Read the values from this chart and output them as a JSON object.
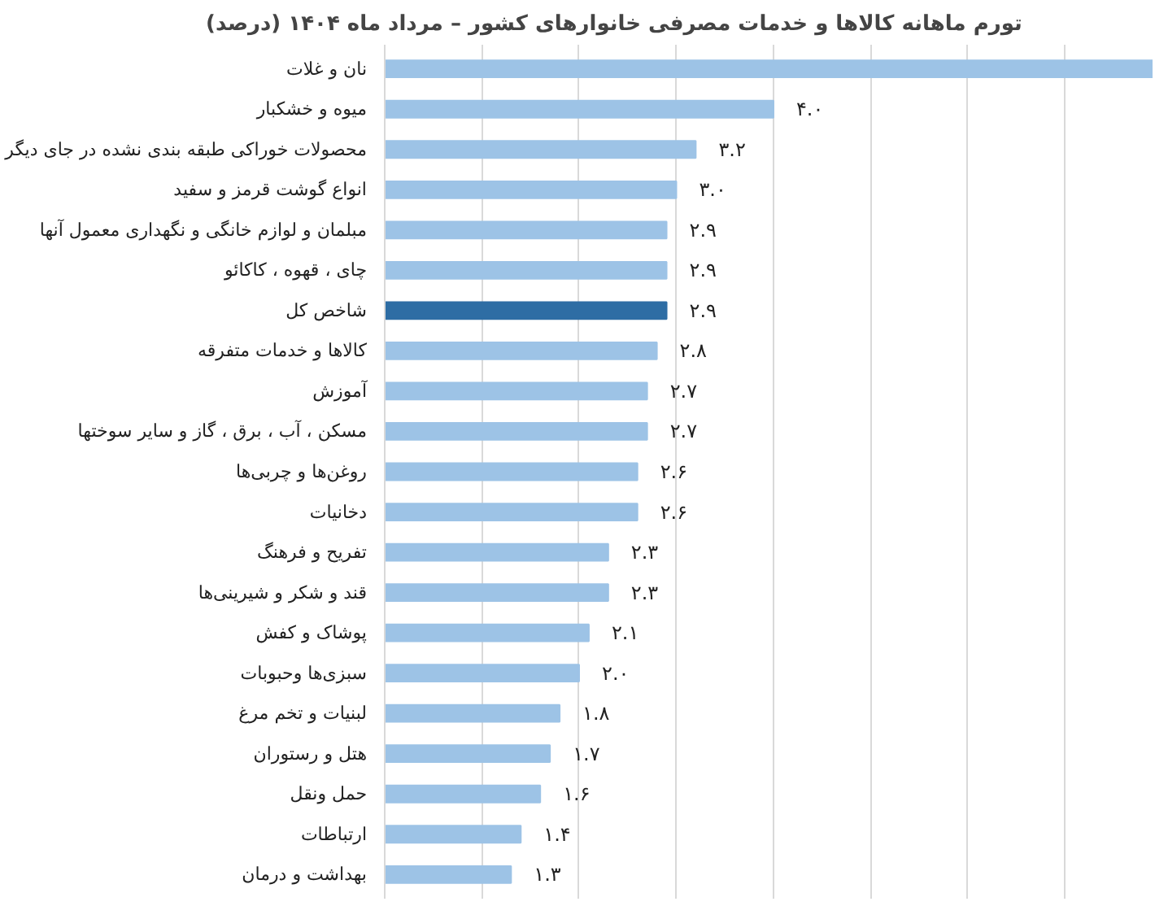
{
  "chart_data": {
    "type": "bar",
    "orientation": "horizontal",
    "title": "تورم ماهانه کالاها و خدمات مصرفی خانوارهای کشور – مرداد ماه ۱۴۰۴ (درصد)",
    "categories": [
      "نان و غلات",
      "میوه و خشکبار",
      "محصولات خوراکی طبقه بندی نشده در جای دیگر",
      "انواع گوشت قرمز و سفید",
      "مبلمان و لوازم خانگی و نگهداری معمول آنها",
      "چای ، قهوه ، کاکائو",
      "شاخص کل",
      "کالاها و خدمات متفرقه",
      "آموزش",
      "مسکن ، آب ، برق ، گاز و سایر سوختها",
      "روغن‌ها و چربی‌ها",
      "دخانیات",
      "تفریح و فرهنگ",
      "قند و شکر و شیرینی‌ها",
      "پوشاک و کفش",
      "سبزی‌ها وحبوبات",
      "لبنیات و تخم مرغ",
      "هتل و رستوران",
      "حمل ونقل",
      "ارتباطات",
      "بهداشت و درمان"
    ],
    "values": [
      7.9,
      4.0,
      3.2,
      3.0,
      2.9,
      2.9,
      2.9,
      2.8,
      2.7,
      2.7,
      2.6,
      2.6,
      2.3,
      2.3,
      2.1,
      2.0,
      1.8,
      1.7,
      1.6,
      1.4,
      1.3
    ],
    "value_labels": [
      null,
      "۴.۰",
      "۳.۲",
      "۳.۰",
      "۲.۹",
      "۲.۹",
      "۲.۹",
      "۲.۸",
      "۲.۷",
      "۲.۷",
      "۲.۶",
      "۲.۶",
      "۲.۳",
      "۲.۳",
      "۲.۱",
      "۲.۰",
      "۱.۸",
      "۱.۷",
      "۱.۶",
      "۱.۴",
      "۱.۳"
    ],
    "colors": [
      "#9dc3e6",
      "#9dc3e6",
      "#9dc3e6",
      "#9dc3e6",
      "#9dc3e6",
      "#9dc3e6",
      "#2e6da4",
      "#9dc3e6",
      "#9dc3e6",
      "#9dc3e6",
      "#9dc3e6",
      "#9dc3e6",
      "#9dc3e6",
      "#9dc3e6",
      "#9dc3e6",
      "#9dc3e6",
      "#9dc3e6",
      "#9dc3e6",
      "#9dc3e6",
      "#9dc3e6",
      "#9dc3e6"
    ],
    "grid": "x",
    "tick_labels": "y"
  }
}
